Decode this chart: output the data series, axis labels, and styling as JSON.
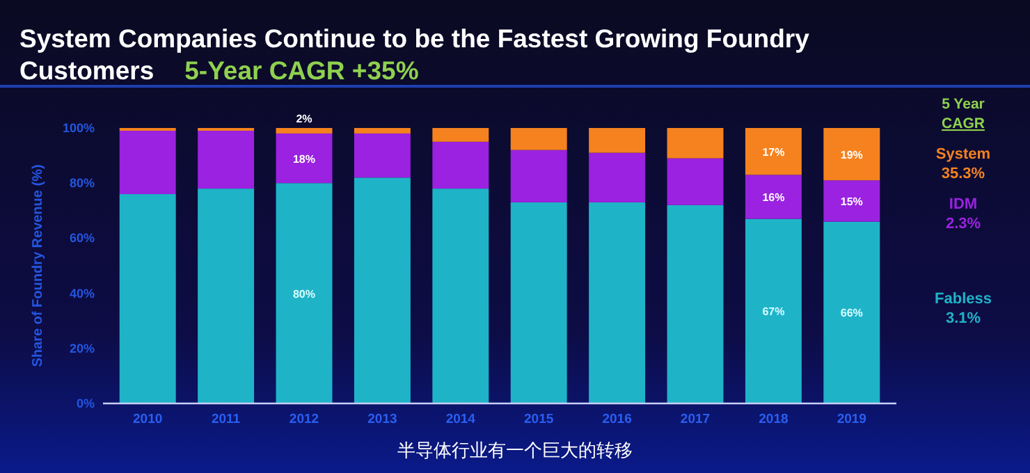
{
  "chart_data": {
    "type": "bar",
    "stacked": true,
    "title": "System Companies Continue to be the Fastest Growing Foundry Customers",
    "subtitle": "5-Year CAGR +35%",
    "ylabel": "Share of Foundry Revenue (%)",
    "legend_title": "5 Year CAGR",
    "legend": "right",
    "grid": false,
    "categories": [
      "2010",
      "2011",
      "2012",
      "2013",
      "2014",
      "2015",
      "2016",
      "2017",
      "2018",
      "2019"
    ],
    "ylim": [
      0,
      100
    ],
    "yticks": [
      {
        "value": 0,
        "label": "0%"
      },
      {
        "value": 20,
        "label": "20%"
      },
      {
        "value": 40,
        "label": "40%"
      },
      {
        "value": 60,
        "label": "60%"
      },
      {
        "value": 80,
        "label": "80%"
      },
      {
        "value": 100,
        "label": "100%"
      }
    ],
    "series": [
      {
        "name": "Fabless 3.1%",
        "color": "#1fb3c8",
        "values": [
          76,
          78,
          80,
          82,
          78,
          73,
          73,
          72,
          67,
          66
        ],
        "value_labels": [
          null,
          null,
          "80%",
          null,
          null,
          null,
          null,
          null,
          "67%",
          "66%"
        ]
      },
      {
        "name": "IDM 2.3%",
        "color": "#9a22e0",
        "values": [
          23,
          21,
          18,
          16,
          17,
          19,
          18,
          17,
          16,
          15
        ],
        "value_labels": [
          null,
          null,
          "18%",
          null,
          null,
          null,
          null,
          null,
          "16%",
          "15%"
        ]
      },
      {
        "name": "System 35.3%",
        "color": "#f5821f",
        "values": [
          1,
          1,
          2,
          2,
          5,
          8,
          9,
          11,
          17,
          19
        ],
        "value_labels": [
          null,
          null,
          "2%",
          null,
          null,
          null,
          null,
          null,
          "17%",
          "19%"
        ]
      }
    ],
    "annotations": [
      "半导体行业有一个巨大的转移"
    ]
  }
}
